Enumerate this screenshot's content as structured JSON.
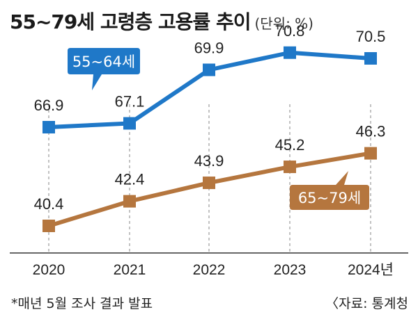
{
  "title": "55~79세 고령층 고용률 추이",
  "unit": "(단위: %)",
  "footnote": "*매년 5월 조사 결과 발표",
  "source": "〈자료: 통계청",
  "chart_data": {
    "type": "line",
    "categories": [
      "2020",
      "2021",
      "2022",
      "2023",
      "2024년"
    ],
    "series": [
      {
        "name": "55~64세",
        "color": "#1f78c8",
        "values": [
          66.9,
          67.1,
          69.9,
          70.8,
          70.5
        ]
      },
      {
        "name": "65~79세",
        "color": "#b5763e",
        "values": [
          40.4,
          42.4,
          43.9,
          45.2,
          46.3
        ]
      }
    ]
  }
}
